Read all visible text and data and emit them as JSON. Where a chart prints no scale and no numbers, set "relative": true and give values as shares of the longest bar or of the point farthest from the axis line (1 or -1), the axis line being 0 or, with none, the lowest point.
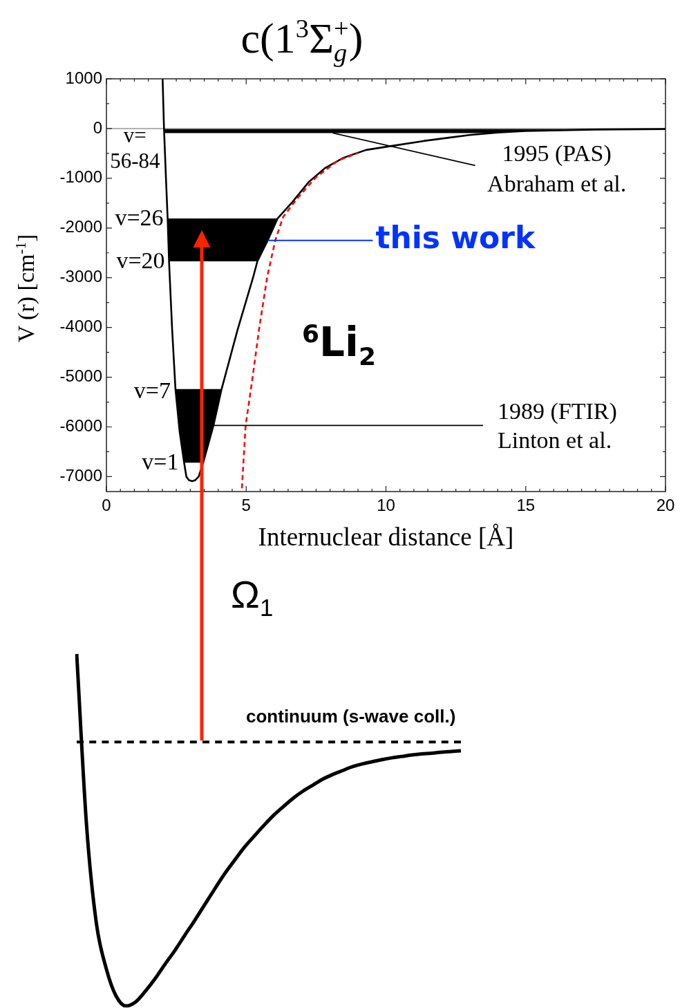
{
  "chart_data": [
    {
      "type": "line",
      "title": "c(1$^{3}$Σ$_{g}$$^{+}$)",
      "xlabel": "Internuclear distance [Å]",
      "ylabel": "V (r) [cm$^{-1}$]",
      "xlim": [
        0,
        20
      ],
      "xticks": [
        0,
        {
          "value": 0.5,
          "label": null
        },
        {
          "value": 1,
          "label": null
        },
        {
          "value": 1.5,
          "label": null
        },
        {
          "value": 2,
          "label": null
        },
        {
          "value": 2.5,
          "label": null
        },
        {
          "value": 3,
          "label": null
        },
        {
          "value": 3.5,
          "label": null
        },
        {
          "value": 4,
          "label": null
        },
        {
          "value": 4.5,
          "label": null
        },
        5,
        {
          "value": 5.5,
          "label": null
        },
        {
          "value": 6,
          "label": null
        },
        {
          "value": 6.5,
          "label": null
        },
        {
          "value": 7,
          "label": null
        },
        {
          "value": 7.5,
          "label": null
        },
        {
          "value": 8,
          "label": null
        },
        {
          "value": 8.5,
          "label": null
        },
        {
          "value": 9,
          "label": null
        },
        {
          "value": 9.5,
          "label": null
        },
        10,
        {
          "value": 10.5,
          "label": null
        },
        {
          "value": 11,
          "label": null
        },
        {
          "value": 11.5,
          "label": null
        },
        {
          "value": 12,
          "label": null
        },
        {
          "value": 12.5,
          "label": null
        },
        {
          "value": 13,
          "label": null
        },
        {
          "value": 13.5,
          "label": null
        },
        {
          "value": 14,
          "label": null
        },
        {
          "value": 14.5,
          "label": null
        },
        15,
        {
          "value": 15.5,
          "label": null
        },
        {
          "value": 16,
          "label": null
        },
        {
          "value": 16.5,
          "label": null
        },
        {
          "value": 17,
          "label": null
        },
        {
          "value": 17.5,
          "label": null
        },
        {
          "value": 18,
          "label": null
        },
        {
          "value": 18.5,
          "label": null
        },
        {
          "value": 19,
          "label": null
        },
        {
          "value": 19.5,
          "label": null
        },
        20
      ],
      "ylim": [
        -7300,
        1000
      ],
      "yticks": [
        -7000,
        {
          "value": -6500,
          "label": null
        },
        -6000,
        {
          "value": -5500,
          "label": null
        },
        -5000,
        {
          "value": -4500,
          "label": null
        },
        -4000,
        {
          "value": -3500,
          "label": null
        },
        -3000,
        {
          "value": -2500,
          "label": null
        },
        -2000,
        {
          "value": -1500,
          "label": null
        },
        -1000,
        {
          "value": -500,
          "label": null
        },
        0,
        {
          "value": 500,
          "label": null
        },
        1000
      ],
      "marker": "none",
      "series": [
        {
          "color": "#000000",
          "x": [
            2.01,
            2.06,
            2.13,
            2.19,
            2.24,
            2.35,
            2.47,
            2.62,
            2.78,
            2.86,
            2.95,
            3.07,
            3.18,
            3.3,
            3.46,
            3.83,
            4.12,
            4.7,
            5.25,
            5.4,
            5.77,
            6.12,
            6.65,
            7.23,
            7.81,
            8.47,
            9.29,
            10.2,
            11.35,
            12.3,
            13.0,
            14.0,
            15.0,
            17.5,
            20.0
          ],
          "values": [
            1000,
            0,
            -1000,
            -1810,
            -2670,
            -4030,
            -5240,
            -6100,
            -6720,
            -7000,
            -7070,
            -7090,
            -7070,
            -7000,
            -6720,
            -5970,
            -5240,
            -4030,
            -2990,
            -2670,
            -2250,
            -1810,
            -1480,
            -1080,
            -800,
            -590,
            -430,
            -350,
            -250,
            -180,
            -130,
            -80,
            -50,
            -20,
            -10
          ]
        },
        {
          "color": "#ff0000",
          "line_style": "dashed",
          "x": [
            4.84,
            4.98,
            5.22,
            5.46,
            5.75,
            6.04,
            6.32,
            6.82,
            7.48,
            8.3,
            9.0
          ],
          "values": [
            -7300,
            -5970,
            -5040,
            -4040,
            -2990,
            -2250,
            -1780,
            -1410,
            -990,
            -640,
            -490
          ]
        }
      ],
      "ref_lines": [
        {
          "axis": "y",
          "value": 0,
          "color": "#999999"
        }
      ],
      "bands": [
        {
          "axis": "y",
          "from": -90,
          "to": -5,
          "color": "#000000"
        },
        {
          "axis": "y",
          "from": -2670,
          "to": -1810,
          "color": "#000000"
        },
        {
          "axis": "y",
          "from": -6720,
          "to": -5240,
          "color": "#000000"
        }
      ],
      "annotations": [
        {
          "text": "v=\n56-84",
          "x": 2.06,
          "y": -50
        },
        {
          "text": "v=26",
          "x": 2.19,
          "y": -1810
        },
        {
          "text": "v=20",
          "x": 2.24,
          "y": -2670
        },
        {
          "text": "v=7",
          "x": 2.47,
          "y": -5240
        },
        {
          "text": "v=1",
          "x": 2.78,
          "y": -6720
        },
        {
          "text": "1995 (PAS)\nAbraham et al.",
          "x": 8.1,
          "y": -90
        },
        {
          "text": "this work",
          "x": 5.77,
          "y": -2250
        },
        {
          "text": "1989 (FTIR)\nLinton et al.",
          "x": 3.83,
          "y": -5970
        },
        "$^{6}$Li$_{2}$"
      ]
    },
    {
      "type": "line",
      "relative": true,
      "categories": [
        null,
        null,
        null,
        null,
        null,
        null,
        null,
        null,
        null,
        null,
        null,
        null,
        null,
        null,
        null,
        null,
        null,
        null,
        null,
        null,
        null,
        null,
        null,
        null,
        null,
        null,
        null,
        null,
        null,
        null,
        null,
        null,
        null,
        null,
        null,
        null,
        null,
        null,
        null,
        null
      ],
      "values": [
        1,
        0.513,
        0.234,
        0.106,
        0.028,
        0,
        0.012,
        0.043,
        0.079,
        0.12,
        0.159,
        0.202,
        0.244,
        0.288,
        0.332,
        0.375,
        0.413,
        0.45,
        0.482,
        0.513,
        0.542,
        0.567,
        0.591,
        0.611,
        0.628,
        0.645,
        0.658,
        0.669,
        0.68,
        0.688,
        0.694,
        0.7,
        0.705,
        0.709,
        0.713,
        0.716,
        0.718,
        0.721,
        0.723,
        0.725
      ],
      "color": "#000000",
      "marker": "none",
      "ref_lines": [
        {
          "axis": "y",
          "value": 0.75,
          "color": "#000000",
          "line_style": "dashed",
          "label": "continuum (s-wave coll.)"
        }
      ],
      "annotations": [
        "Ω$_{1}$"
      ]
    }
  ]
}
